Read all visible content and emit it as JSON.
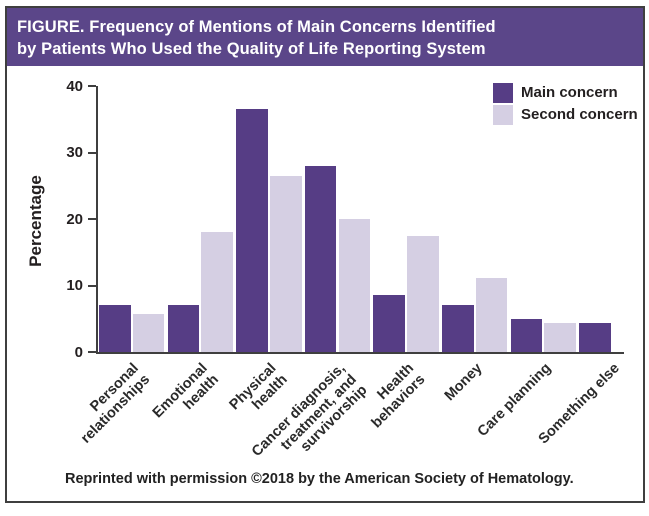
{
  "figure": {
    "title_line1": "FIGURE. Frequency of Mentions of Main Concerns Identified",
    "title_line2": "by Patients Who Used the Quality of Life Reporting System",
    "footer": "Reprinted with permission ©2018 by the American Society of Hematology."
  },
  "colors": {
    "banner_bg": "#5b4689",
    "main_bar": "#563d85",
    "second_bar": "#d5cfe3",
    "axis": "#3f3f3f",
    "text": "#231f20",
    "border": "#3f3f3f",
    "title_text": "#ffffff"
  },
  "chart_data": {
    "type": "bar",
    "title": "",
    "xlabel": "",
    "ylabel": "Percentage",
    "ylim": [
      0,
      40
    ],
    "yticks": [
      40,
      30,
      20,
      10,
      0
    ],
    "grid": false,
    "legend_position": "top-right",
    "categories": [
      "Personal\nrelationships",
      "Emotional\nhealth",
      "Physical\nhealth",
      "Cancer diagnosis,\ntreatment, and\nsurvivorship",
      "Health\nbehaviors",
      "Money",
      "Care planning",
      "Something else"
    ],
    "series": [
      {
        "name": "Main concern",
        "color": "#563d85",
        "values": [
          7,
          7,
          36.5,
          28,
          8.5,
          7,
          5,
          4.3
        ]
      },
      {
        "name": "Second concern",
        "color": "#d5cfe3",
        "values": [
          5.7,
          18,
          26.5,
          20,
          17.5,
          11.2,
          4.3,
          null
        ]
      }
    ]
  }
}
